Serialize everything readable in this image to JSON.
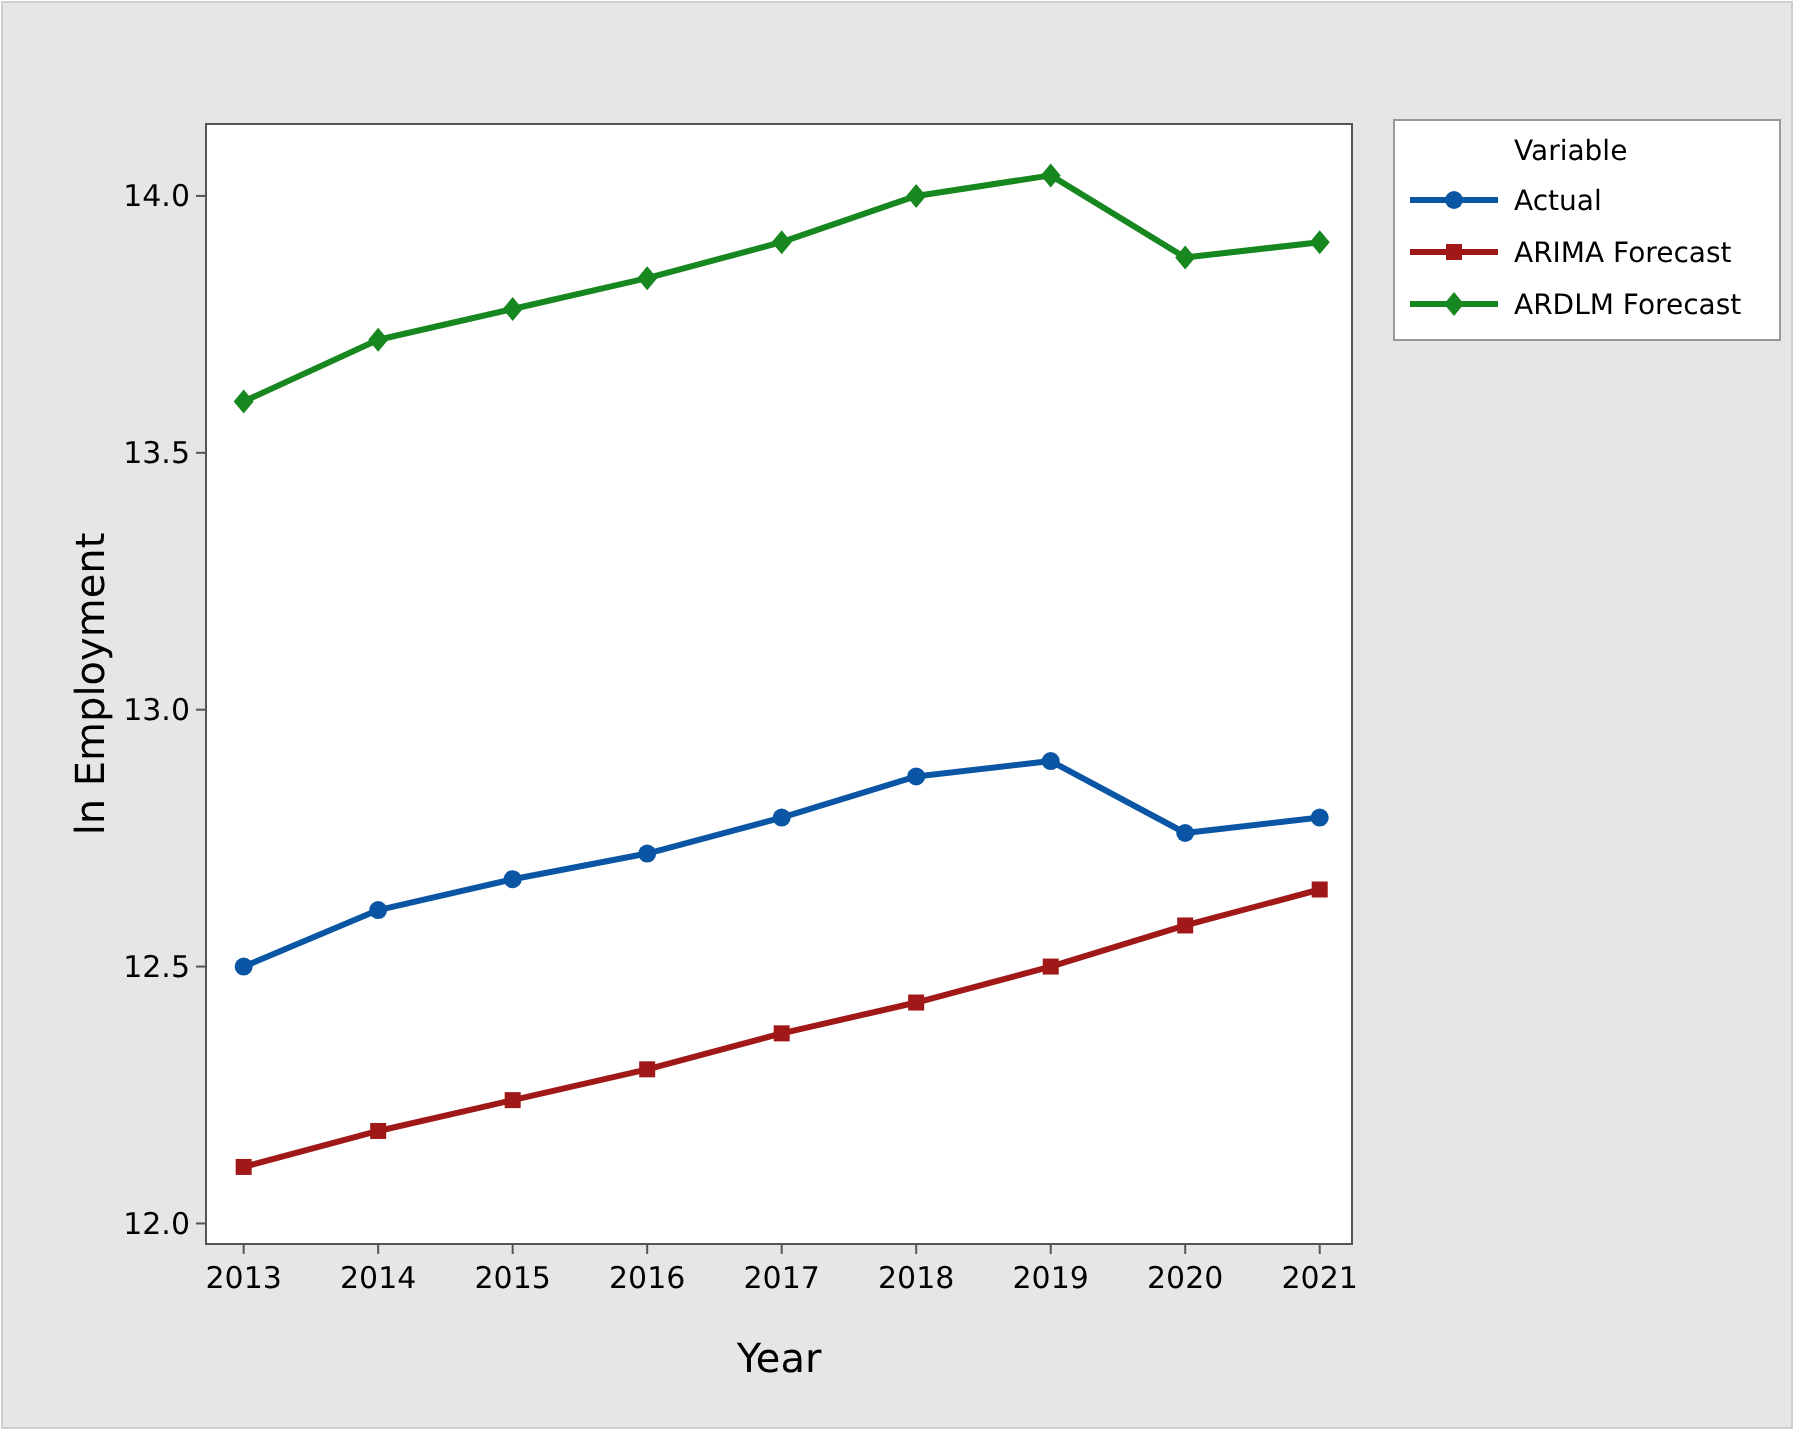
{
  "chart_data": {
    "type": "line",
    "xlabel": "Year",
    "ylabel": "ln Employment",
    "legend_title": "Variable",
    "legend": "top right",
    "x": [
      2013,
      2014,
      2015,
      2016,
      2017,
      2018,
      2019,
      2020,
      2021
    ],
    "xlim": [
      2012.72,
      2021.24
    ],
    "ylim": [
      11.96,
      14.14
    ],
    "xticks": [
      2013,
      2014,
      2015,
      2016,
      2017,
      2018,
      2019,
      2020,
      2021
    ],
    "yticks": [
      {
        "value": 12,
        "label": "12.0"
      },
      12.5,
      {
        "value": 13,
        "label": "13.0"
      },
      13.5,
      {
        "value": 14,
        "label": "14.0"
      }
    ],
    "line_style": "solid",
    "series": [
      {
        "name": "Actual",
        "color": "#0a56a4",
        "marker": "circle",
        "values": [
          12.5,
          12.61,
          12.67,
          12.72,
          12.79,
          12.87,
          12.9,
          12.76,
          12.79
        ]
      },
      {
        "name": "ARIMA Forecast",
        "color": "#a01818",
        "marker": "square",
        "values": [
          12.11,
          12.18,
          12.24,
          12.3,
          12.37,
          12.43,
          12.5,
          12.58,
          12.65
        ]
      },
      {
        "name": "ARDLM Forecast",
        "color": "#17871f",
        "marker": "diamond",
        "values": [
          13.6,
          13.72,
          13.78,
          13.84,
          13.91,
          14.0,
          14.04,
          13.88,
          13.91
        ]
      }
    ]
  }
}
